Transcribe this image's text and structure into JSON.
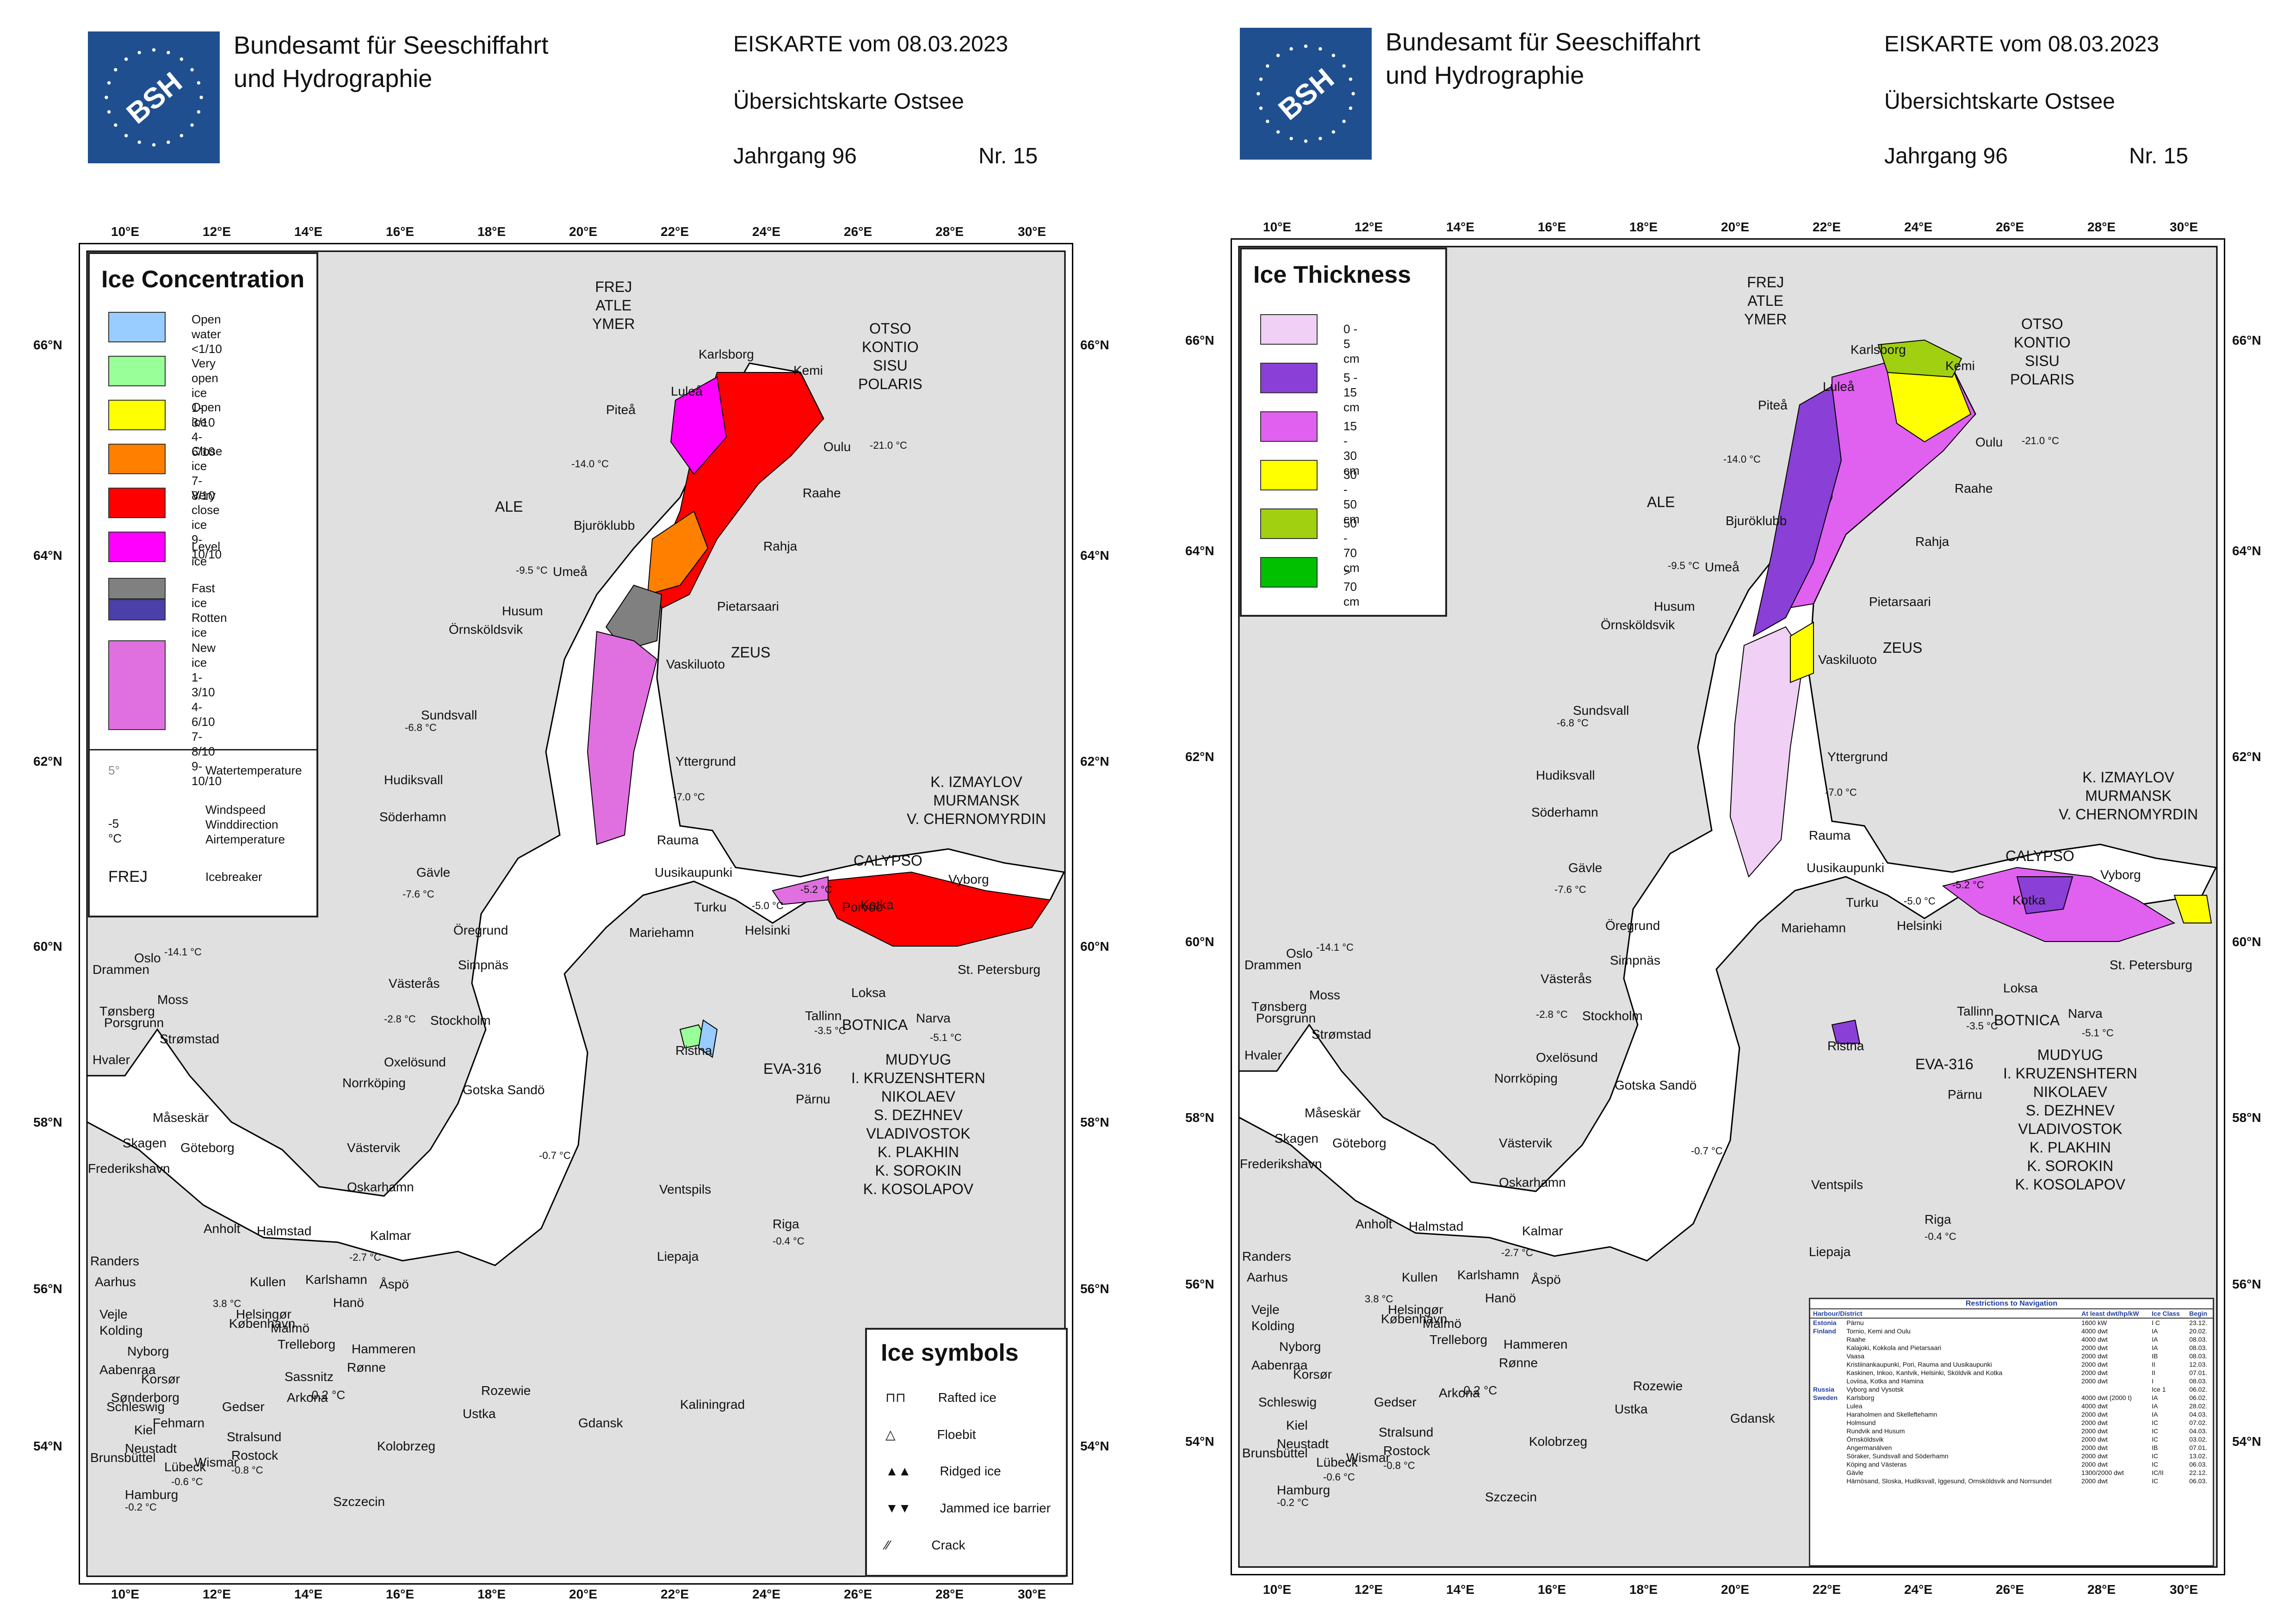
{
  "header": {
    "agency": [
      "Bundesamt für Seeschiffahrt",
      "und Hydrographie"
    ],
    "logo_text": "BSH",
    "title": "EISKARTE vom 08.03.2023",
    "subtitle": "Übersichtskarte Ostsee",
    "volume": "Jahrgang 96",
    "number": "Nr. 15"
  },
  "axes": {
    "lon_ticks": [
      "10°E",
      "12°E",
      "14°E",
      "16°E",
      "18°E",
      "20°E",
      "22°E",
      "24°E",
      "26°E",
      "28°E",
      "30°E"
    ],
    "lat_ticks": [
      "66°N",
      "64°N",
      "62°N",
      "60°N",
      "58°N",
      "56°N",
      "54°N"
    ]
  },
  "colors": {
    "land": "#e0e0e0",
    "sea": "#ffffff",
    "open_water": "#99ccff",
    "very_open": "#99ff99",
    "open_ice": "#ffff00",
    "close_ice": "#ff8000",
    "very_close": "#ff0000",
    "level_ice": "#ff00ff",
    "fast_ice": "#808080",
    "rotten_ice": "#4b3fa8",
    "new_ice": "#e070e0",
    "t0_5": "#f0d0f5",
    "t5_15": "#8a3fd6",
    "t15_30": "#e060f0",
    "t30_50": "#ffff00",
    "t50_70": "#a0d010",
    "t70": "#00c000"
  },
  "left_map": {
    "legend_title": "Ice Concentration",
    "legend": [
      {
        "label": "Open water",
        "sub": "<1/10",
        "color_key": "open_water"
      },
      {
        "label": "Very open ice",
        "sub": "1-3/10",
        "color_key": "very_open"
      },
      {
        "label": "Open ice",
        "sub": "4-6/10",
        "color_key": "open_ice"
      },
      {
        "label": "Close ice",
        "sub": "7-8/10",
        "color_key": "close_ice"
      },
      {
        "label": "Very close ice",
        "sub": "9-10/10",
        "color_key": "very_close"
      },
      {
        "label": "Level ice",
        "sub": "",
        "color_key": "level_ice"
      },
      {
        "label": "Fast ice",
        "sub": "Rotten ice",
        "color_key": "fast_ice"
      }
    ],
    "new_ice": {
      "label": "New ice",
      "levels": [
        "1-3/10",
        "4-6/10",
        "7-8/10",
        "9-10/10"
      ]
    },
    "water_temperature": "Watertemperature",
    "water_temp_sample": "5°",
    "wind": [
      "Windspeed",
      "Winddirection",
      "Airtemperature"
    ],
    "wind_sample": "-5 °C",
    "icebreaker_sample": "FREJ",
    "icebreaker_label": "Icebreaker",
    "symbols_title": "Ice symbols",
    "symbols": [
      "Rafted ice",
      "Floebit",
      "Ridged ice",
      "Jammed ice barrier",
      "Crack"
    ]
  },
  "right_map": {
    "legend_title": "Ice Thickness",
    "legend": [
      {
        "label": "0 - 5 cm",
        "color_key": "t0_5"
      },
      {
        "label": "5 - 15 cm",
        "color_key": "t5_15"
      },
      {
        "label": "15 - 30 cm",
        "color_key": "t15_30"
      },
      {
        "label": "30 - 50 cm",
        "color_key": "t30_50"
      },
      {
        "label": "50 - 70 cm",
        "color_key": "t50_70"
      },
      {
        "label": "> 70 cm",
        "color_key": "t70"
      }
    ],
    "restrictions": {
      "title": "Restrictions to Navigation",
      "columns": [
        "Harbour/District",
        "At least dwt/hp/kW",
        "Ice Class",
        "Begin"
      ],
      "rows": [
        [
          "Estonia",
          "Pärnu",
          "1600 kW",
          "I C",
          "23.12."
        ],
        [
          "Finland",
          "Tornio, Kemi and Oulu",
          "4000 dwt",
          "IA",
          "20.02."
        ],
        [
          "",
          "Raahe",
          "4000 dwt",
          "IA",
          "08.03."
        ],
        [
          "",
          "Kalajoki, Kokkola and Pietarsaari",
          "2000 dwt",
          "IA",
          "08.03."
        ],
        [
          "",
          "Vaasa",
          "2000 dwt",
          "IB",
          "08.03."
        ],
        [
          "",
          "Kristiinankaupunki, Pori, Rauma and Uusikaupunki",
          "2000 dwt",
          "II",
          "12.03."
        ],
        [
          "",
          "Kaskinen, Inkoo, Kantvik, Helsinki, Sköldvik and Kotka",
          "2000 dwt",
          "II",
          "07.01."
        ],
        [
          "",
          "Loviisa, Kotka and Hamina",
          "2000 dwt",
          "I",
          "08.03."
        ],
        [
          "Russia",
          "Vyborg and Vysotsk",
          "",
          "Ice 1",
          "06.02."
        ],
        [
          "Sweden",
          "Karlsborg",
          "4000 dwt (2000 t)",
          "IA",
          "06.02."
        ],
        [
          "",
          "Lulea",
          "4000 dwt",
          "IA",
          "28.02."
        ],
        [
          "",
          "Haraholmen and Skelleftehamn",
          "2000 dwt",
          "IA",
          "04.03."
        ],
        [
          "",
          "Holmsund",
          "2000 dwt",
          "IC",
          "07.02."
        ],
        [
          "",
          "Rundvik and Husum",
          "2000 dwt",
          "IC",
          "04.03."
        ],
        [
          "",
          "Örnsköldsvik",
          "2000 dwt",
          "IC",
          "03.02."
        ],
        [
          "",
          "Angermanälven",
          "2000 dwt",
          "IB",
          "07.01."
        ],
        [
          "",
          "Söraker, Sundsvall and Söderhamn",
          "2000 dwt",
          "IC",
          "13.02."
        ],
        [
          "",
          "Köping and Västeras",
          "2000 dwt",
          "IC",
          "06.03."
        ],
        [
          "",
          "Gävle",
          "1300/2000 dwt",
          "IC/II",
          "22.12."
        ],
        [
          "",
          "Härnösand, Sloska, Hudiksvall, Iggesund, Ornsköldsvik and Norrsundet",
          "2000 dwt",
          "IC",
          "06.03."
        ]
      ]
    }
  },
  "places": [
    "Karlsborg",
    "Kemi",
    "Luleå",
    "Piteå",
    "Oulu",
    "Raahe",
    "Bjuröklubb",
    "Rahja",
    "Umeå",
    "Pietarsaari",
    "Husum",
    "Örnsköldsvik",
    "Vaskiluoto",
    "Sundsvall",
    "Yttergrund",
    "Hudiksvall",
    "Söderhamn",
    "Rauma",
    "Gävle",
    "Uusikaupunki",
    "Turku",
    "Kotka",
    "Vyborg",
    "Porvoo",
    "Helsinki",
    "Mariehamn",
    "Öregrund",
    "Simpnäs",
    "Västerås",
    "Stockholm",
    "Loksa",
    "Tallinn",
    "Narva",
    "St. Petersburg",
    "Ristna",
    "Pärnu",
    "Oxelösund",
    "Norrköping",
    "Gotska Sandö",
    "Västervik",
    "Oskarhamn",
    "Ventspils",
    "Riga",
    "Liepaja",
    "Kalmar",
    "Karlshamn",
    "Åspö",
    "Hanö",
    "Hammeren",
    "Rønne",
    "Trelleborg",
    "Arkona",
    "Sassnitz",
    "Rozewie",
    "Kaliningrad",
    "Gdansk",
    "Ustka",
    "Kolobrzeg",
    "Szczecin",
    "Stralsund",
    "Rostock",
    "Gedser",
    "Wismar",
    "Lübeck",
    "Kiel",
    "Hamburg",
    "Schleswig",
    "Brunsbüttel",
    "Neustadt",
    "Fehmarn",
    "Oslo",
    "Drammen",
    "Moss",
    "Tønsberg",
    "Porsgrunn",
    "Strømstad",
    "Hvaler",
    "Måseskär",
    "Skagen",
    "Frederikshavn",
    "Göteborg",
    "Anholt",
    "Halmstad",
    "Kullen",
    "Helsingør",
    "København",
    "Malmö",
    "Randers",
    "Aarhus",
    "Vejle",
    "Kolding",
    "Nyborg",
    "Korsør",
    "Aabenraa",
    "Sønderborg"
  ],
  "temps": [
    "-14.0 °C",
    "-21.0 °C",
    "-9.5 °C",
    "-6.8 °C",
    "-7.0 °C",
    "-7.6 °C",
    "-5.0 °C",
    "-5.2 °C",
    "-14.1 °C",
    "-2.8 °C",
    "-3.5 °C",
    "-5.1 °C",
    "-0.7 °C",
    "-0.4 °C",
    "-2.7 °C",
    "3.8 °C",
    "-0.2 °C",
    "-0.6 °C",
    "-0.8 °C",
    "-0.2 °C"
  ],
  "icebreakers": [
    {
      "name": "FREJ\nATLE\nYMER"
    },
    {
      "name": "OTSO\nKONTIO\nSISU\nPOLARIS"
    },
    {
      "name": "ALE"
    },
    {
      "name": "ZEUS"
    },
    {
      "name": "K. IZMAYLOV\nMURMANSK\nV. CHERNOMYRDIN"
    },
    {
      "name": "CALYPSO"
    },
    {
      "name": "BOTNICA"
    },
    {
      "name": "EVA-316"
    },
    {
      "name": "MUDYUG\nI. KRUZENSHTERN\nNIKOLAEV\nS. DEZHNEV\nVLADIVOSTOK\nK. PLAKHIN\nK. SOROKIN\nK. KOSOLAPOV"
    }
  ]
}
